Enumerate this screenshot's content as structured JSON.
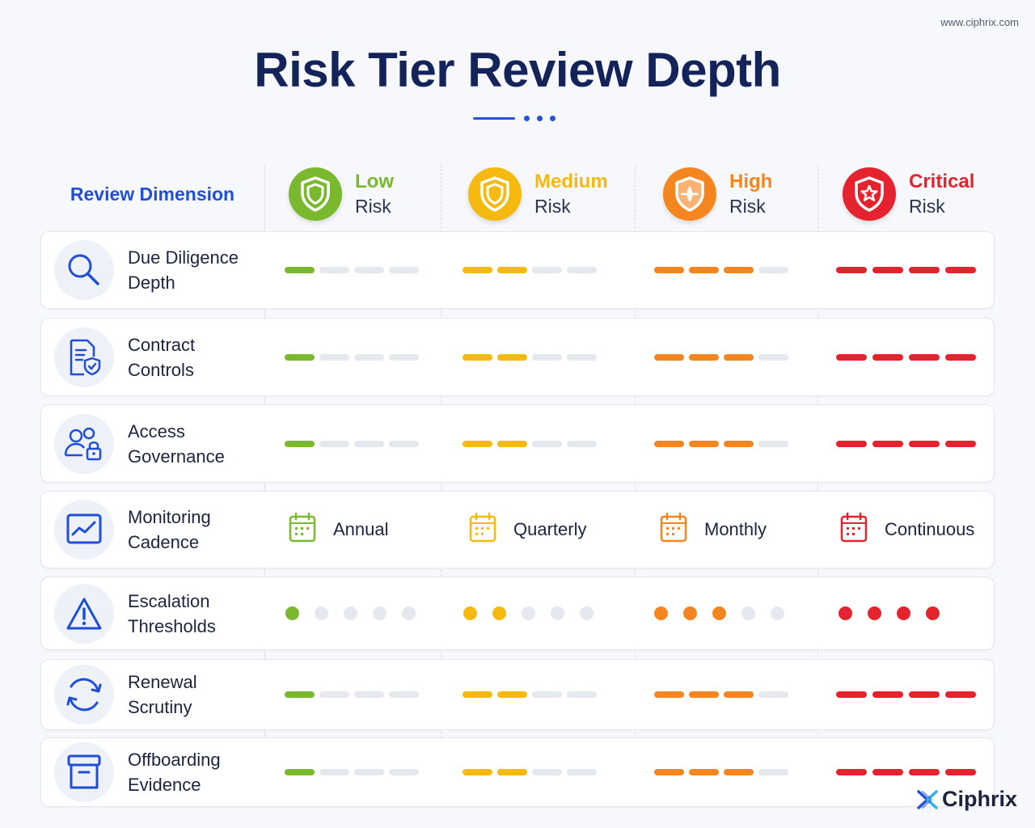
{
  "site_url": "www.ciphrix.com",
  "title": "Risk Tier Review Depth",
  "header": {
    "dimension_label": "Review Dimension",
    "tiers": [
      {
        "name": "Low",
        "sub": "Risk",
        "color": "#7ab82e",
        "icon": "shield-icon"
      },
      {
        "name": "Medium",
        "sub": "Risk",
        "color": "#f5b90f",
        "icon": "shield-icon"
      },
      {
        "name": "High",
        "sub": "Risk",
        "color": "#f5851f",
        "icon": "shield-plane-icon"
      },
      {
        "name": "Critical",
        "sub": "Risk",
        "color": "#e4232e",
        "icon": "shield-star-icon"
      }
    ]
  },
  "rows": [
    {
      "line1": "Due Diligence",
      "line2": "Depth",
      "icon": "magnifier-icon",
      "type": "bars",
      "levels": [
        1,
        2,
        3,
        4
      ],
      "max": 4
    },
    {
      "line1": "Contract",
      "line2": "Controls",
      "icon": "document-shield-icon",
      "type": "bars",
      "levels": [
        1,
        2,
        3,
        4
      ],
      "max": 4
    },
    {
      "line1": "Access",
      "line2": "Governance",
      "icon": "users-lock-icon",
      "type": "bars",
      "levels": [
        1,
        2,
        3,
        4
      ],
      "max": 4
    },
    {
      "line1": "Monitoring",
      "line2": "Cadence",
      "icon": "trend-chart-icon",
      "type": "cadence",
      "values": [
        "Annual",
        "Quarterly",
        "Monthly",
        "Continuous"
      ]
    },
    {
      "line1": "Escalation",
      "line2": "Thresholds",
      "icon": "warning-icon",
      "type": "dots",
      "levels": [
        1,
        2,
        3,
        4
      ],
      "max": [
        5,
        5,
        5,
        4
      ]
    },
    {
      "line1": "Renewal",
      "line2": "Scrutiny",
      "icon": "refresh-icon",
      "type": "bars",
      "levels": [
        1,
        2,
        3,
        4
      ],
      "max": 4
    },
    {
      "line1": "Offboarding",
      "line2": "Evidence",
      "icon": "archive-box-icon",
      "type": "bars",
      "levels": [
        1,
        2,
        3,
        4
      ],
      "max": 4
    }
  ],
  "brand": {
    "name": "Ciphrix",
    "icon": "ciphrix-logo-icon"
  },
  "colors": {
    "accent": "#1f4fd8",
    "title": "#14245a",
    "inactive": "#e6e8f0"
  }
}
